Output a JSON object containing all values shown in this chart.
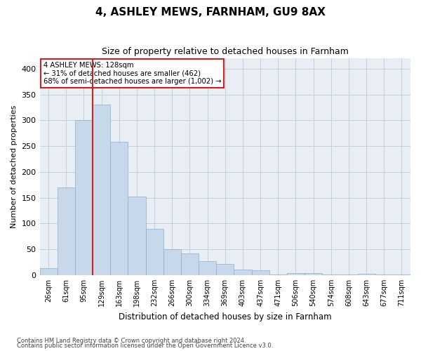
{
  "title": "4, ASHLEY MEWS, FARNHAM, GU9 8AX",
  "subtitle": "Size of property relative to detached houses in Farnham",
  "xlabel": "Distribution of detached houses by size in Farnham",
  "ylabel": "Number of detached properties",
  "bar_color": "#c8d8eb",
  "bar_edge_color": "#8ab0cc",
  "grid_color": "#c5d0dc",
  "background_color": "#e8eef4",
  "marker_line_color": "#cc2222",
  "marker_bar_index": 3,
  "annotation_lines": [
    "4 ASHLEY MEWS: 128sqm",
    "← 31% of detached houses are smaller (462)",
    "68% of semi-detached houses are larger (1,002) →"
  ],
  "categories": [
    "26sqm",
    "61sqm",
    "95sqm",
    "129sqm",
    "163sqm",
    "198sqm",
    "232sqm",
    "266sqm",
    "300sqm",
    "334sqm",
    "369sqm",
    "403sqm",
    "437sqm",
    "471sqm",
    "506sqm",
    "540sqm",
    "574sqm",
    "608sqm",
    "643sqm",
    "677sqm",
    "711sqm"
  ],
  "values": [
    13,
    170,
    301,
    330,
    258,
    152,
    90,
    50,
    42,
    27,
    21,
    11,
    9,
    1,
    4,
    4,
    1,
    1,
    3,
    1,
    1
  ],
  "ylim": [
    0,
    420
  ],
  "yticks": [
    0,
    50,
    100,
    150,
    200,
    250,
    300,
    350,
    400
  ],
  "footnote1": "Contains HM Land Registry data © Crown copyright and database right 2024.",
  "footnote2": "Contains public sector information licensed under the Open Government Licence v3.0."
}
